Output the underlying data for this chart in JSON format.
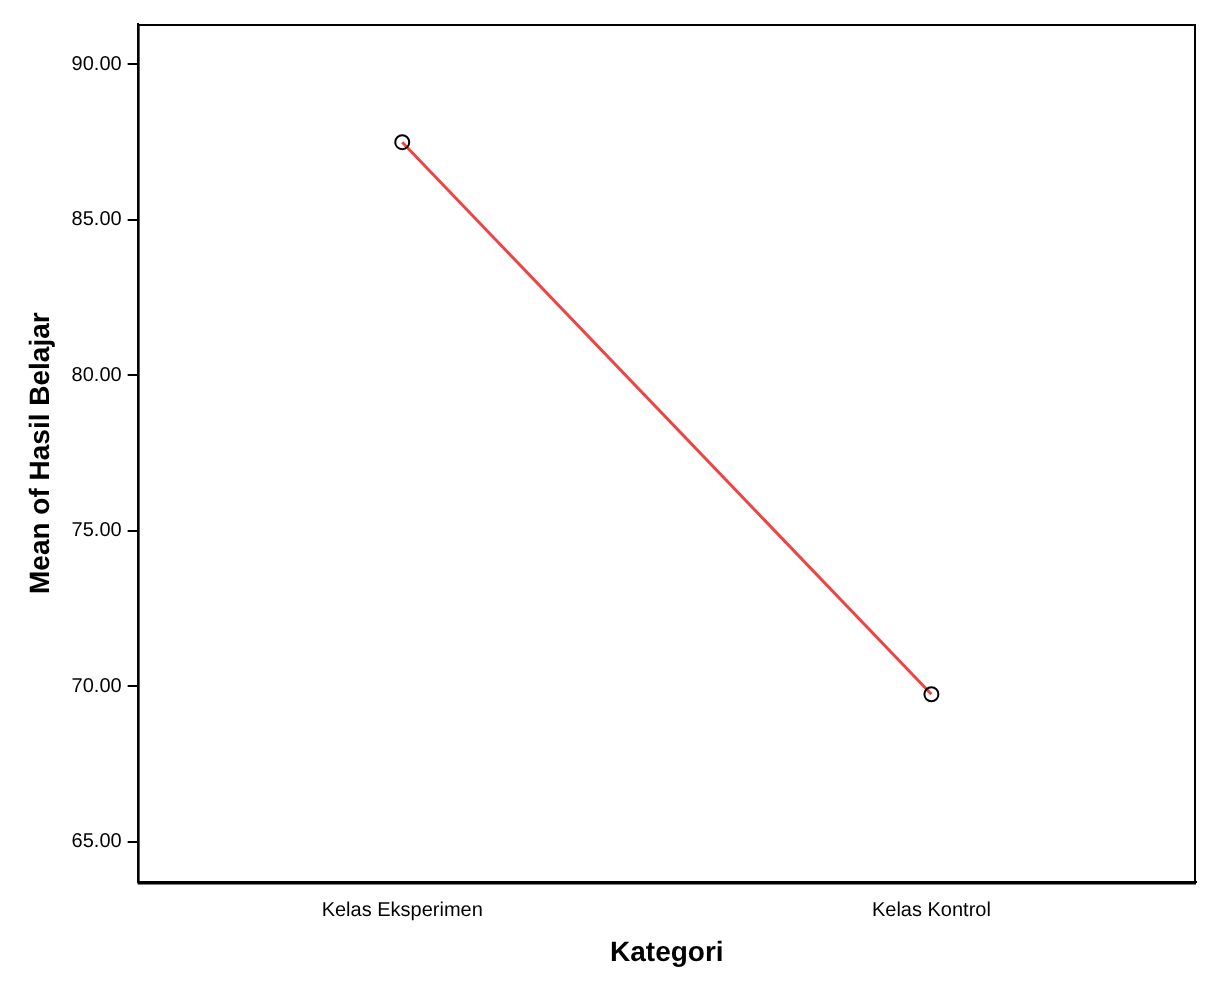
{
  "chart_data": {
    "type": "line",
    "xlabel": "Kategori",
    "ylabel": "Mean of Hasil Belajar",
    "categories": [
      "Kelas Eksperimen",
      "Kelas Kontrol"
    ],
    "series": [
      {
        "color": "#ee4444",
        "values": [
          87.5,
          69.75
        ]
      }
    ],
    "ylim": [
      63.7,
      91.3
    ],
    "yticks": [
      {
        "value": 65,
        "label": "65.00"
      },
      {
        "value": 70,
        "label": "70.00"
      },
      {
        "value": 75,
        "label": "75.00"
      },
      {
        "value": 80,
        "label": "80.00"
      },
      {
        "value": 85,
        "label": "85.00"
      },
      {
        "value": 90,
        "label": "90.00"
      }
    ],
    "grid": false,
    "legend": false,
    "marker": "circle",
    "line_style": "solid"
  }
}
